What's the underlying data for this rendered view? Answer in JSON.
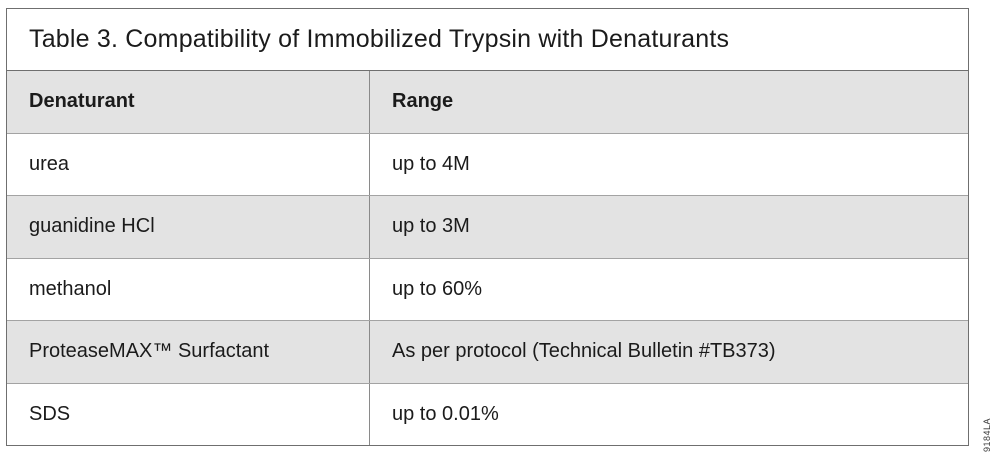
{
  "title": "Table 3. Compatibility of Immobilized Trypsin with Denaturants",
  "table": {
    "columns": {
      "denaturant": "Denaturant",
      "range": "Range"
    },
    "rows": [
      {
        "denaturant": "urea",
        "range": "up to 4M"
      },
      {
        "denaturant": "guanidine HCl",
        "range": "up to 3M"
      },
      {
        "denaturant": "methanol",
        "range": "up to 60%"
      },
      {
        "denaturant": "ProteaseMAX™ Surfactant",
        "range": "As per protocol (Technical Bulletin #TB373)"
      },
      {
        "denaturant": "SDS",
        "range": "up to 0.01%"
      }
    ]
  },
  "figure_code": "9184LA",
  "colors": {
    "header_bg": "#e3e3e3",
    "stripe_bg": "#e3e3e3",
    "row_bg": "#ffffff",
    "outer_border": "#6f6f6f",
    "row_divider": "#a3a3a3",
    "column_divider": "#8a8a8a",
    "text": "#1b1b1b"
  }
}
